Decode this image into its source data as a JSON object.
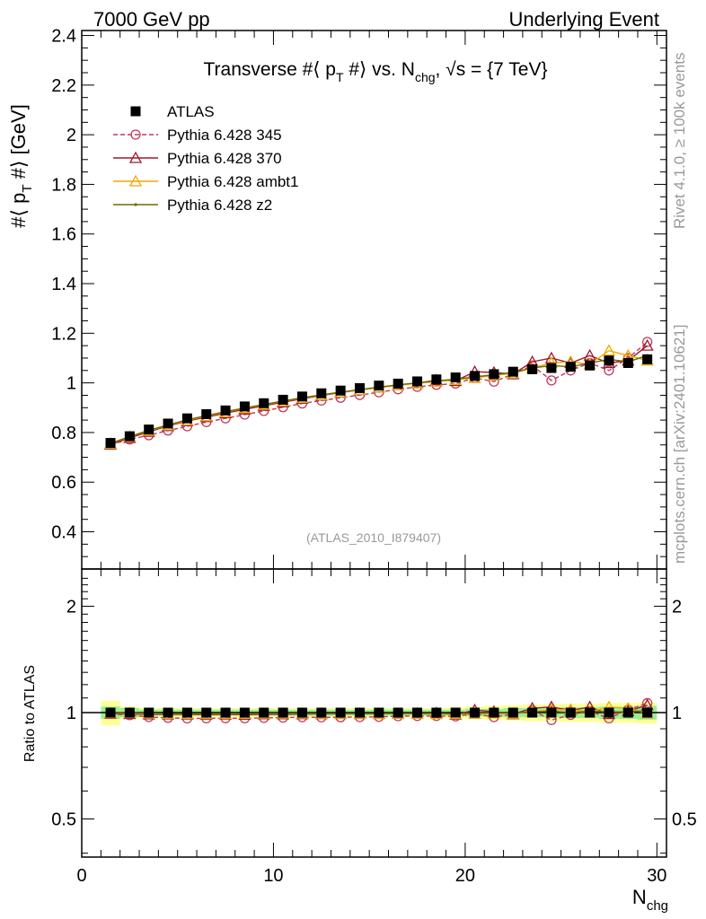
{
  "header": {
    "left_label": "7000 GeV pp",
    "right_label": "Underlying Event"
  },
  "side_labels": {
    "rivet": "Rivet 4.1.0, ≥ 100k events",
    "mcplots": "mcplots.cern.ch [arXiv:2401.10621]"
  },
  "chart_data": {
    "type": "line",
    "title": "Transverse #⟨ p_T #⟩ vs. N_chg, √s = {7 TeV}",
    "title_parts": {
      "prefix": "Transverse #⟨ p",
      "sub1": "T",
      "mid": " #⟩ vs. N",
      "sub2": "chg",
      "suffix": ", √s = {7 TeV}"
    },
    "ylabel": "#⟨ p_T #⟩ [GeV]",
    "ylabel_parts": {
      "prefix": "#⟨ p",
      "sub": "T",
      "suffix": " #⟩ [GeV]"
    },
    "xlabel": "N_chg",
    "xlabel_parts": {
      "main": "N",
      "sub": "chg"
    },
    "watermark": "(ATLAS_2010_I879407)",
    "xlim": [
      0,
      30.5
    ],
    "ylim": [
      0.25,
      2.42
    ],
    "yticks": [
      0.4,
      0.6,
      0.8,
      1,
      1.2,
      1.4,
      1.6,
      1.8,
      2,
      2.2,
      2.4
    ],
    "ytick_labels": [
      "0.4",
      "0.6",
      "0.8",
      "1",
      "1.2",
      "1.4",
      "1.6",
      "1.8",
      "2",
      "2.2",
      "2.4"
    ],
    "xticks": [
      0,
      10,
      20,
      30
    ],
    "xtick_labels": [
      "0",
      "10",
      "20",
      "30"
    ],
    "x": [
      1.5,
      2.5,
      3.5,
      4.5,
      5.5,
      6.5,
      7.5,
      8.5,
      9.5,
      10.5,
      11.5,
      12.5,
      13.5,
      14.5,
      15.5,
      16.5,
      17.5,
      18.5,
      19.5,
      20.5,
      21.5,
      22.5,
      23.5,
      24.5,
      25.5,
      26.5,
      27.5,
      28.5,
      29.5
    ],
    "series": [
      {
        "name": "ATLAS",
        "marker": "square",
        "color": "#000000",
        "dashed": false,
        "values": [
          0.758,
          0.785,
          0.812,
          0.836,
          0.857,
          0.874,
          0.889,
          0.905,
          0.918,
          0.932,
          0.945,
          0.958,
          0.969,
          0.979,
          0.989,
          0.997,
          1.006,
          1.014,
          1.022,
          1.028,
          1.035,
          1.045,
          1.055,
          1.06,
          1.065,
          1.07,
          1.09,
          1.08,
          1.095
        ]
      },
      {
        "name": "Pythia 6.428 345",
        "marker": "circle",
        "color": "#c0395a",
        "dashed": true,
        "values": [
          0.752,
          0.772,
          0.789,
          0.808,
          0.825,
          0.842,
          0.857,
          0.872,
          0.887,
          0.902,
          0.917,
          0.929,
          0.94,
          0.951,
          0.962,
          0.974,
          0.984,
          0.992,
          0.997,
          1.02,
          1.005,
          1.035,
          1.07,
          1.01,
          1.05,
          1.08,
          1.05,
          1.1,
          1.165
        ]
      },
      {
        "name": "Pythia 6.428 370",
        "marker": "triangle",
        "color": "#a0182c",
        "dashed": false,
        "values": [
          0.752,
          0.778,
          0.803,
          0.826,
          0.846,
          0.862,
          0.878,
          0.893,
          0.908,
          0.922,
          0.936,
          0.949,
          0.961,
          0.971,
          0.981,
          0.991,
          0.999,
          1.011,
          1.008,
          1.045,
          1.042,
          1.035,
          1.085,
          1.1,
          1.08,
          1.11,
          1.08,
          1.09,
          1.15
        ]
      },
      {
        "name": "Pythia 6.428 ambt1",
        "marker": "triangle",
        "color": "#f0a800",
        "dashed": false,
        "values": [
          0.755,
          0.783,
          0.807,
          0.829,
          0.849,
          0.866,
          0.882,
          0.898,
          0.912,
          0.926,
          0.939,
          0.951,
          0.962,
          0.972,
          0.981,
          0.99,
          0.998,
          1.005,
          1.012,
          1.02,
          1.03,
          1.038,
          1.06,
          1.08,
          1.085,
          1.075,
          1.13,
          1.11,
          1.09
        ]
      },
      {
        "name": "Pythia 6.428 z2",
        "marker": "dot",
        "color": "#6b6b00",
        "dashed": false,
        "values": [
          0.756,
          0.784,
          0.809,
          0.83,
          0.851,
          0.868,
          0.884,
          0.899,
          0.913,
          0.927,
          0.94,
          0.952,
          0.963,
          0.973,
          0.983,
          0.992,
          1.0,
          1.008,
          1.015,
          1.024,
          1.033,
          1.042,
          1.06,
          1.07,
          1.065,
          1.08,
          1.095,
          1.085,
          1.11
        ]
      }
    ],
    "ratio": {
      "ylabel": "Ratio to ATLAS",
      "ylim": [
        0.39,
        2.55
      ],
      "log_scale": true,
      "yticks": [
        0.5,
        1,
        2
      ],
      "ytick_labels": [
        "0.5",
        "1",
        "2"
      ],
      "band_inner": [
        0.04,
        0.03,
        0.02,
        0.02,
        0.02,
        0.02,
        0.02,
        0.02,
        0.02,
        0.02,
        0.02,
        0.02,
        0.02,
        0.02,
        0.02,
        0.02,
        0.02,
        0.02,
        0.02,
        0.025,
        0.025,
        0.03,
        0.03,
        0.03,
        0.035,
        0.035,
        0.04,
        0.04,
        0.045
      ],
      "band_outer": [
        0.08,
        0.04,
        0.03,
        0.03,
        0.03,
        0.03,
        0.03,
        0.03,
        0.03,
        0.03,
        0.03,
        0.03,
        0.03,
        0.03,
        0.03,
        0.03,
        0.03,
        0.03,
        0.035,
        0.04,
        0.045,
        0.05,
        0.055,
        0.055,
        0.06,
        0.06,
        0.065,
        0.065,
        0.07
      ]
    }
  }
}
